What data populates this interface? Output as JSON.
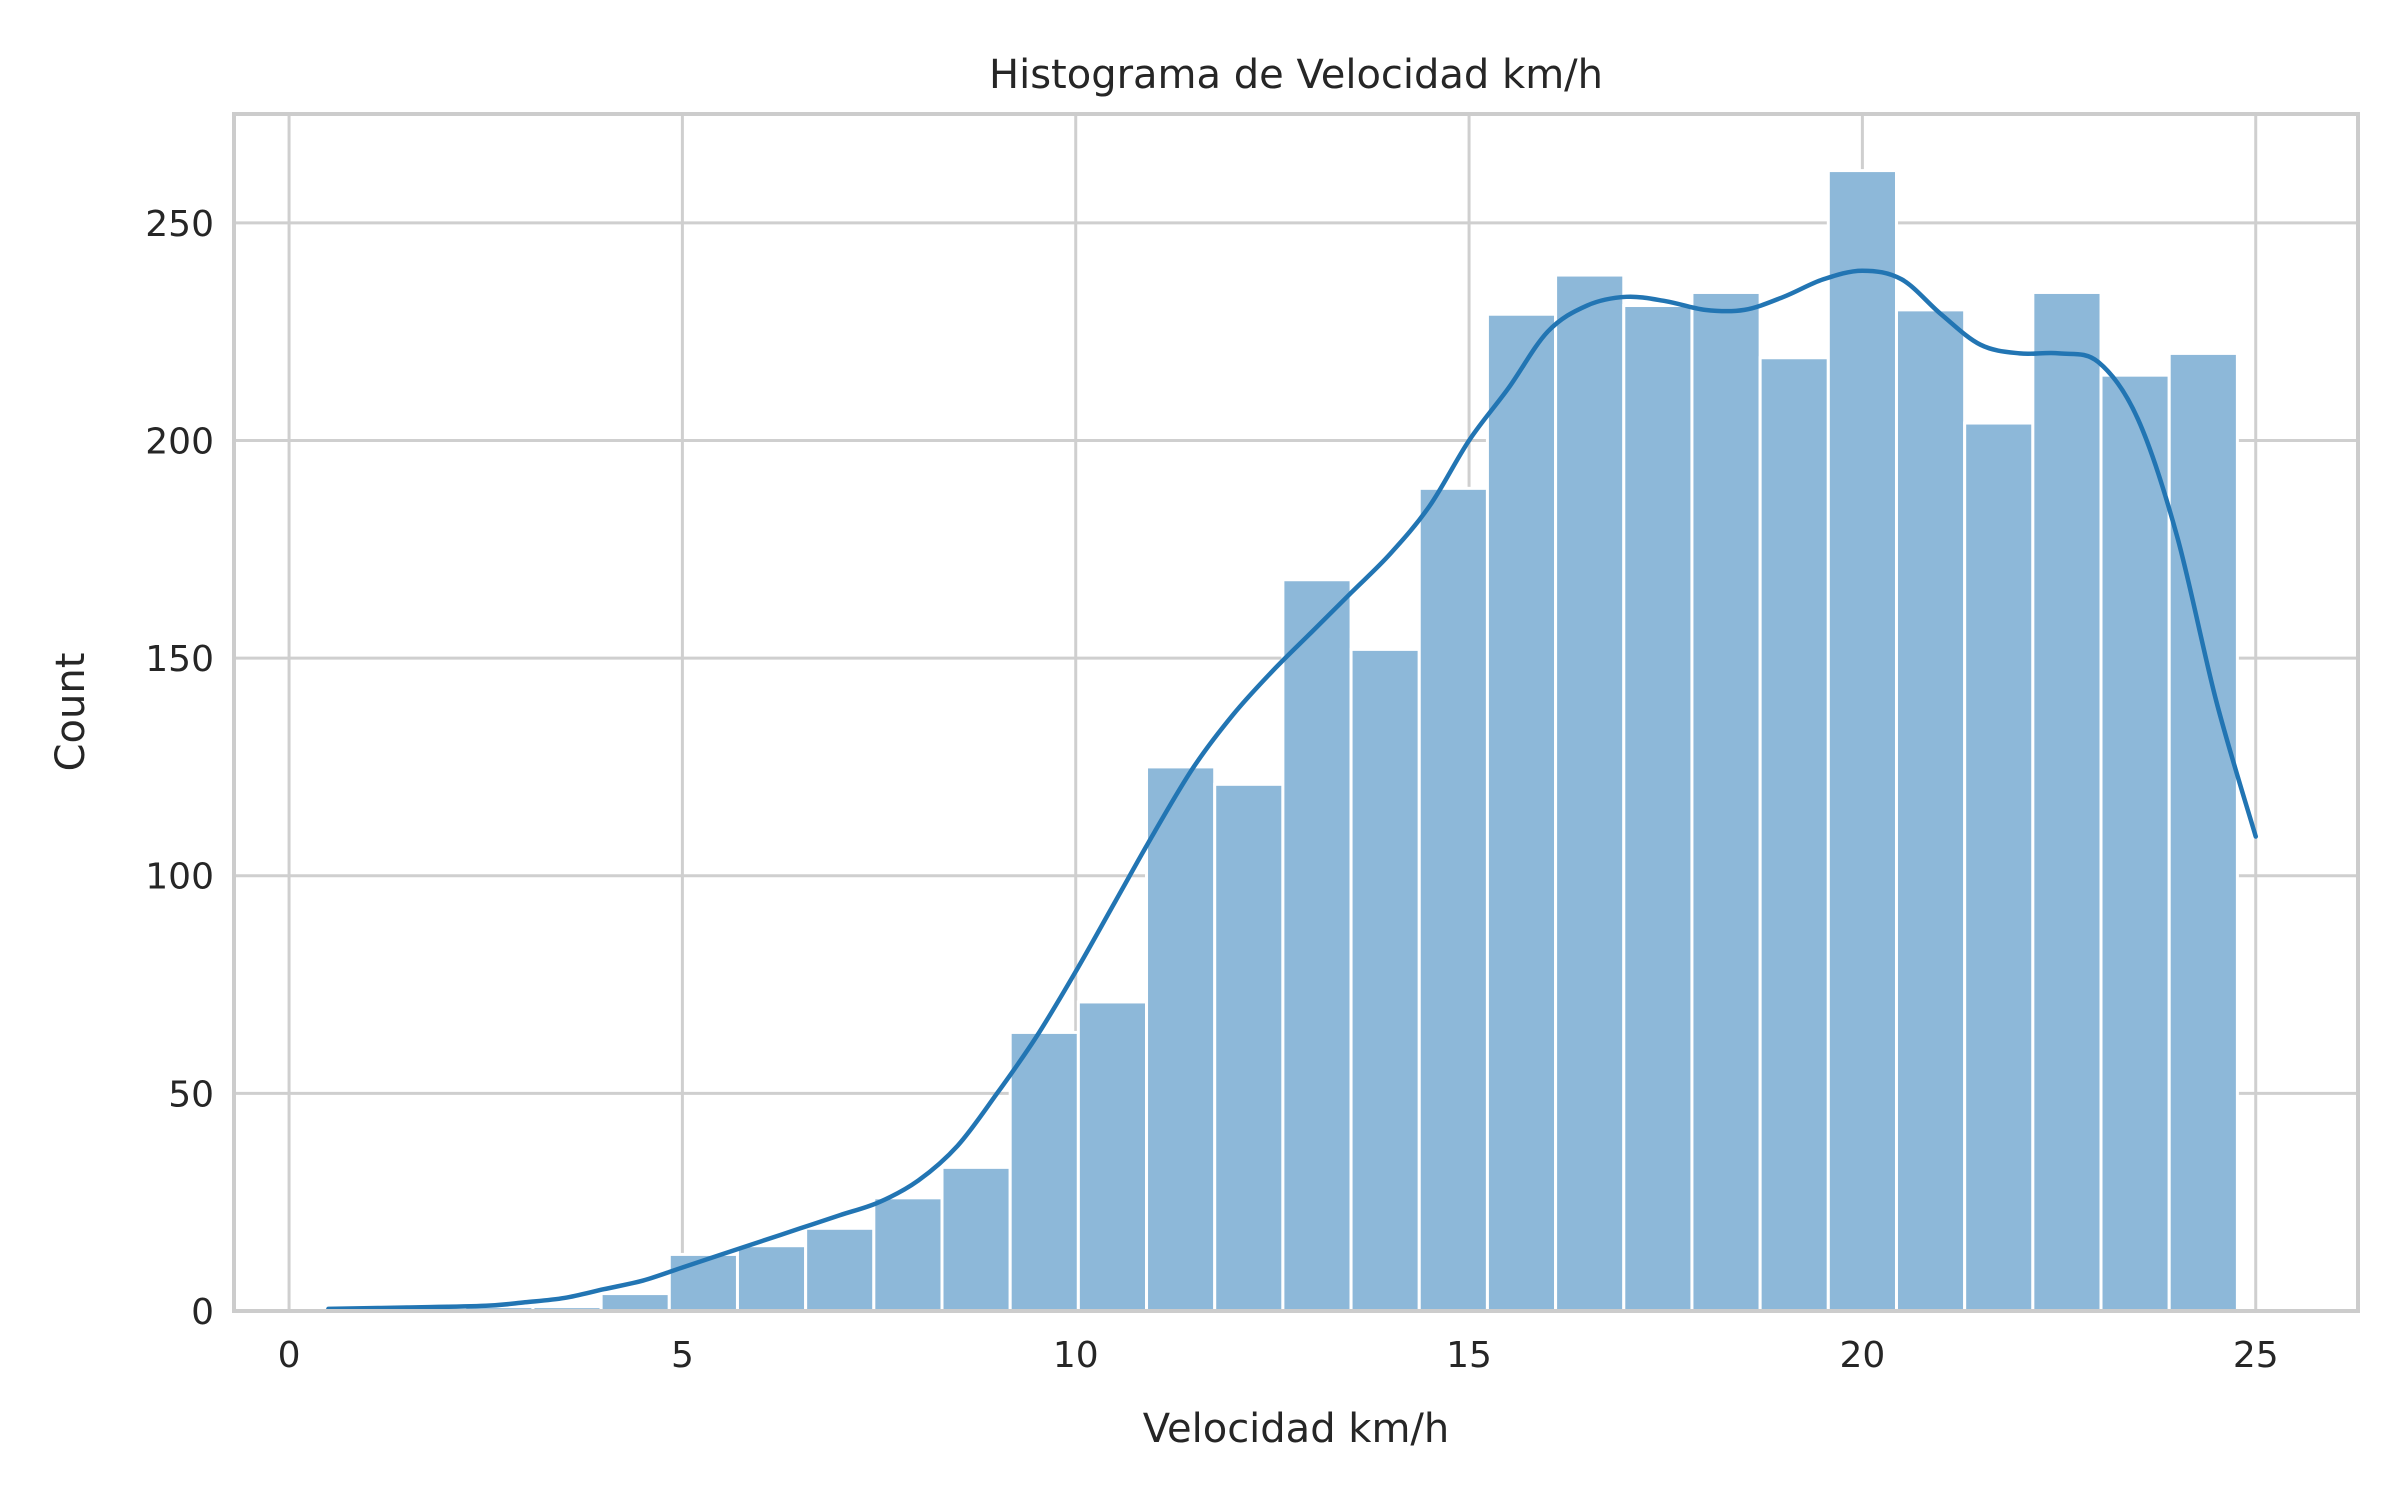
{
  "chart_data": {
    "type": "bar",
    "title": "Histograma de Velocidad km/h",
    "xlabel": "Velocidad km/h",
    "ylabel": "Count",
    "xlim": [
      -0.7,
      26.3
    ],
    "ylim": [
      0,
      275
    ],
    "xticks": [
      0,
      5,
      10,
      15,
      20,
      25
    ],
    "yticks": [
      0,
      50,
      100,
      150,
      200,
      250
    ],
    "grid": true,
    "bin_width": 0.8667,
    "bins": [
      {
        "start": 0.5,
        "count": 1
      },
      {
        "start": 1.3667,
        "count": 0
      },
      {
        "start": 2.2333,
        "count": 1
      },
      {
        "start": 3.1,
        "count": 1
      },
      {
        "start": 3.9667,
        "count": 4
      },
      {
        "start": 4.8333,
        "count": 13
      },
      {
        "start": 5.7,
        "count": 15
      },
      {
        "start": 6.5667,
        "count": 19
      },
      {
        "start": 7.4333,
        "count": 26
      },
      {
        "start": 8.3,
        "count": 33
      },
      {
        "start": 9.1667,
        "count": 64
      },
      {
        "start": 10.0333,
        "count": 71
      },
      {
        "start": 10.9,
        "count": 125
      },
      {
        "start": 11.7667,
        "count": 121
      },
      {
        "start": 12.6333,
        "count": 168
      },
      {
        "start": 13.5,
        "count": 152
      },
      {
        "start": 14.3667,
        "count": 189
      },
      {
        "start": 15.2333,
        "count": 229
      },
      {
        "start": 16.1,
        "count": 238
      },
      {
        "start": 16.9667,
        "count": 231
      },
      {
        "start": 17.8333,
        "count": 234
      },
      {
        "start": 18.7,
        "count": 219
      },
      {
        "start": 19.5667,
        "count": 262
      },
      {
        "start": 20.4333,
        "count": 230
      },
      {
        "start": 21.3,
        "count": 204
      },
      {
        "start": 22.1667,
        "count": 234
      },
      {
        "start": 23.0333,
        "count": 215
      },
      {
        "start": 23.9,
        "count": 220
      }
    ],
    "kde": {
      "x": [
        0.5,
        1.5,
        2.5,
        3.0,
        3.5,
        4.0,
        4.5,
        5.0,
        5.5,
        6.0,
        6.5,
        7.0,
        7.5,
        8.0,
        8.5,
        9.0,
        9.5,
        10.0,
        10.5,
        11.0,
        11.5,
        12.0,
        12.5,
        13.0,
        13.5,
        14.0,
        14.5,
        15.0,
        15.5,
        16.0,
        16.5,
        17.0,
        17.5,
        18.0,
        18.5,
        19.0,
        19.5,
        20.0,
        20.5,
        21.0,
        21.5,
        22.0,
        22.5,
        23.0,
        23.5,
        24.0,
        24.5,
        25.0
      ],
      "y": [
        0.5,
        0.8,
        1.2,
        2,
        3,
        5,
        7,
        10,
        13,
        16,
        19,
        22,
        25,
        30,
        38,
        50,
        63,
        78,
        94,
        110,
        125,
        137,
        147,
        156,
        165,
        174,
        185,
        200,
        212,
        225,
        231,
        233,
        232,
        230,
        230,
        233,
        237,
        239,
        237,
        229,
        222,
        220,
        220,
        218,
        205,
        178,
        140,
        109
      ]
    },
    "colors": {
      "bar": "#8db8d9",
      "line": "#2275b3",
      "grid": "#cfcfcf",
      "text": "#262626"
    }
  }
}
